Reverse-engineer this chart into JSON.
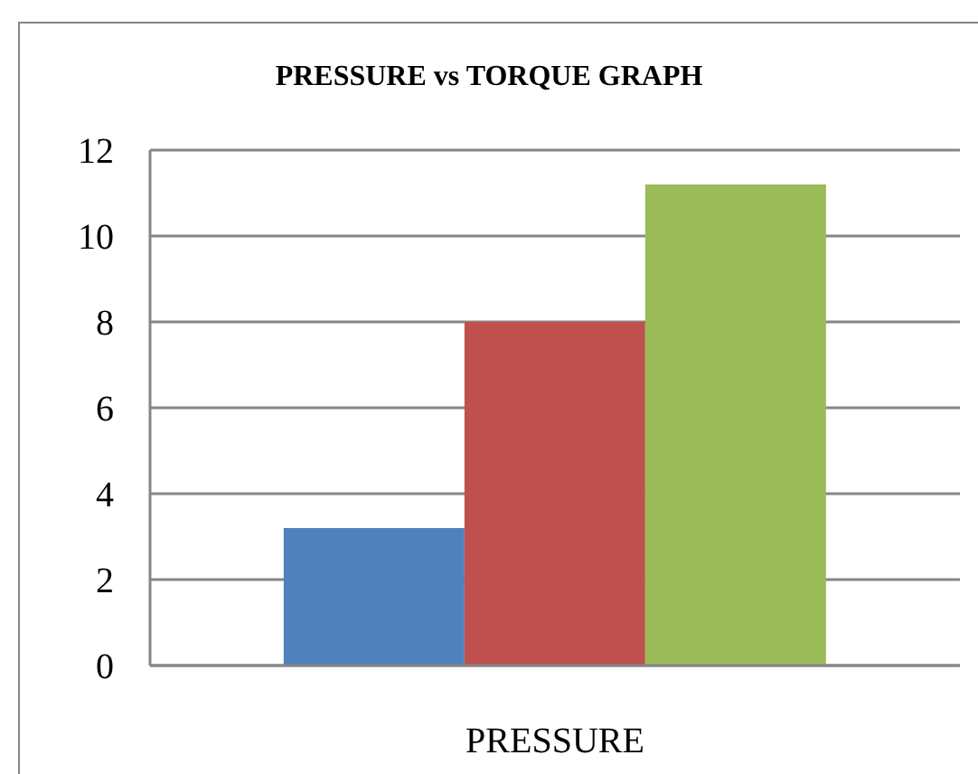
{
  "chart_data": {
    "type": "bar",
    "title": "PRESSURE vs TORQUE GRAPH",
    "categories": [
      "PRESSURE"
    ],
    "series": [
      {
        "color": "#4f81bd",
        "values": [
          3.2
        ]
      },
      {
        "color": "#c0504d",
        "values": [
          8
        ]
      },
      {
        "color": "#9bbb59",
        "values": [
          11.2
        ]
      }
    ],
    "ylim": [
      0,
      12
    ],
    "yticks": [
      0,
      2,
      4,
      6,
      8,
      10,
      12
    ],
    "grid": "y",
    "legend": false
  }
}
